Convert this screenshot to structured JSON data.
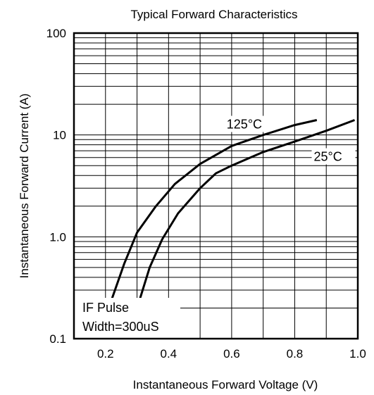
{
  "chart_data": {
    "type": "line",
    "title": "Typical Forward Characteristics",
    "xlabel": "Instantaneous Forward Voltage (V)",
    "ylabel": "Instantaneous Forward Current (A)",
    "xlim": [
      0.1,
      1.0
    ],
    "ylim": [
      0.1,
      100
    ],
    "y_scale": "log",
    "grid": true,
    "x_ticks": [
      {
        "value": 0.2,
        "label": "0.2"
      },
      {
        "value": 0.4,
        "label": "0.4"
      },
      {
        "value": 0.6,
        "label": "0.6"
      },
      {
        "value": 0.8,
        "label": "0.8"
      },
      {
        "value": 1.0,
        "label": "1.0"
      }
    ],
    "y_ticks": [
      {
        "value": 0.1,
        "label": "0.1"
      },
      {
        "value": 1,
        "label": "1.0"
      },
      {
        "value": 10,
        "label": "10"
      },
      {
        "value": 100,
        "label": "100"
      }
    ],
    "series": [
      {
        "name": "125°C",
        "x": [
          0.21,
          0.26,
          0.3,
          0.36,
          0.42,
          0.5,
          0.6,
          0.7,
          0.8,
          0.87
        ],
        "y": [
          0.2,
          0.55,
          1.1,
          2.0,
          3.3,
          5.2,
          7.8,
          10,
          12.5,
          14
        ]
      },
      {
        "name": "25°C",
        "x": [
          0.3,
          0.34,
          0.38,
          0.43,
          0.5,
          0.55,
          0.6,
          0.7,
          0.8,
          0.9,
          0.99
        ],
        "y": [
          0.2,
          0.5,
          0.95,
          1.7,
          3.0,
          4.2,
          5.0,
          6.8,
          8.6,
          11.0,
          14.0
        ]
      }
    ],
    "annotations": [
      "IF Pulse",
      "Width=300uS"
    ]
  }
}
